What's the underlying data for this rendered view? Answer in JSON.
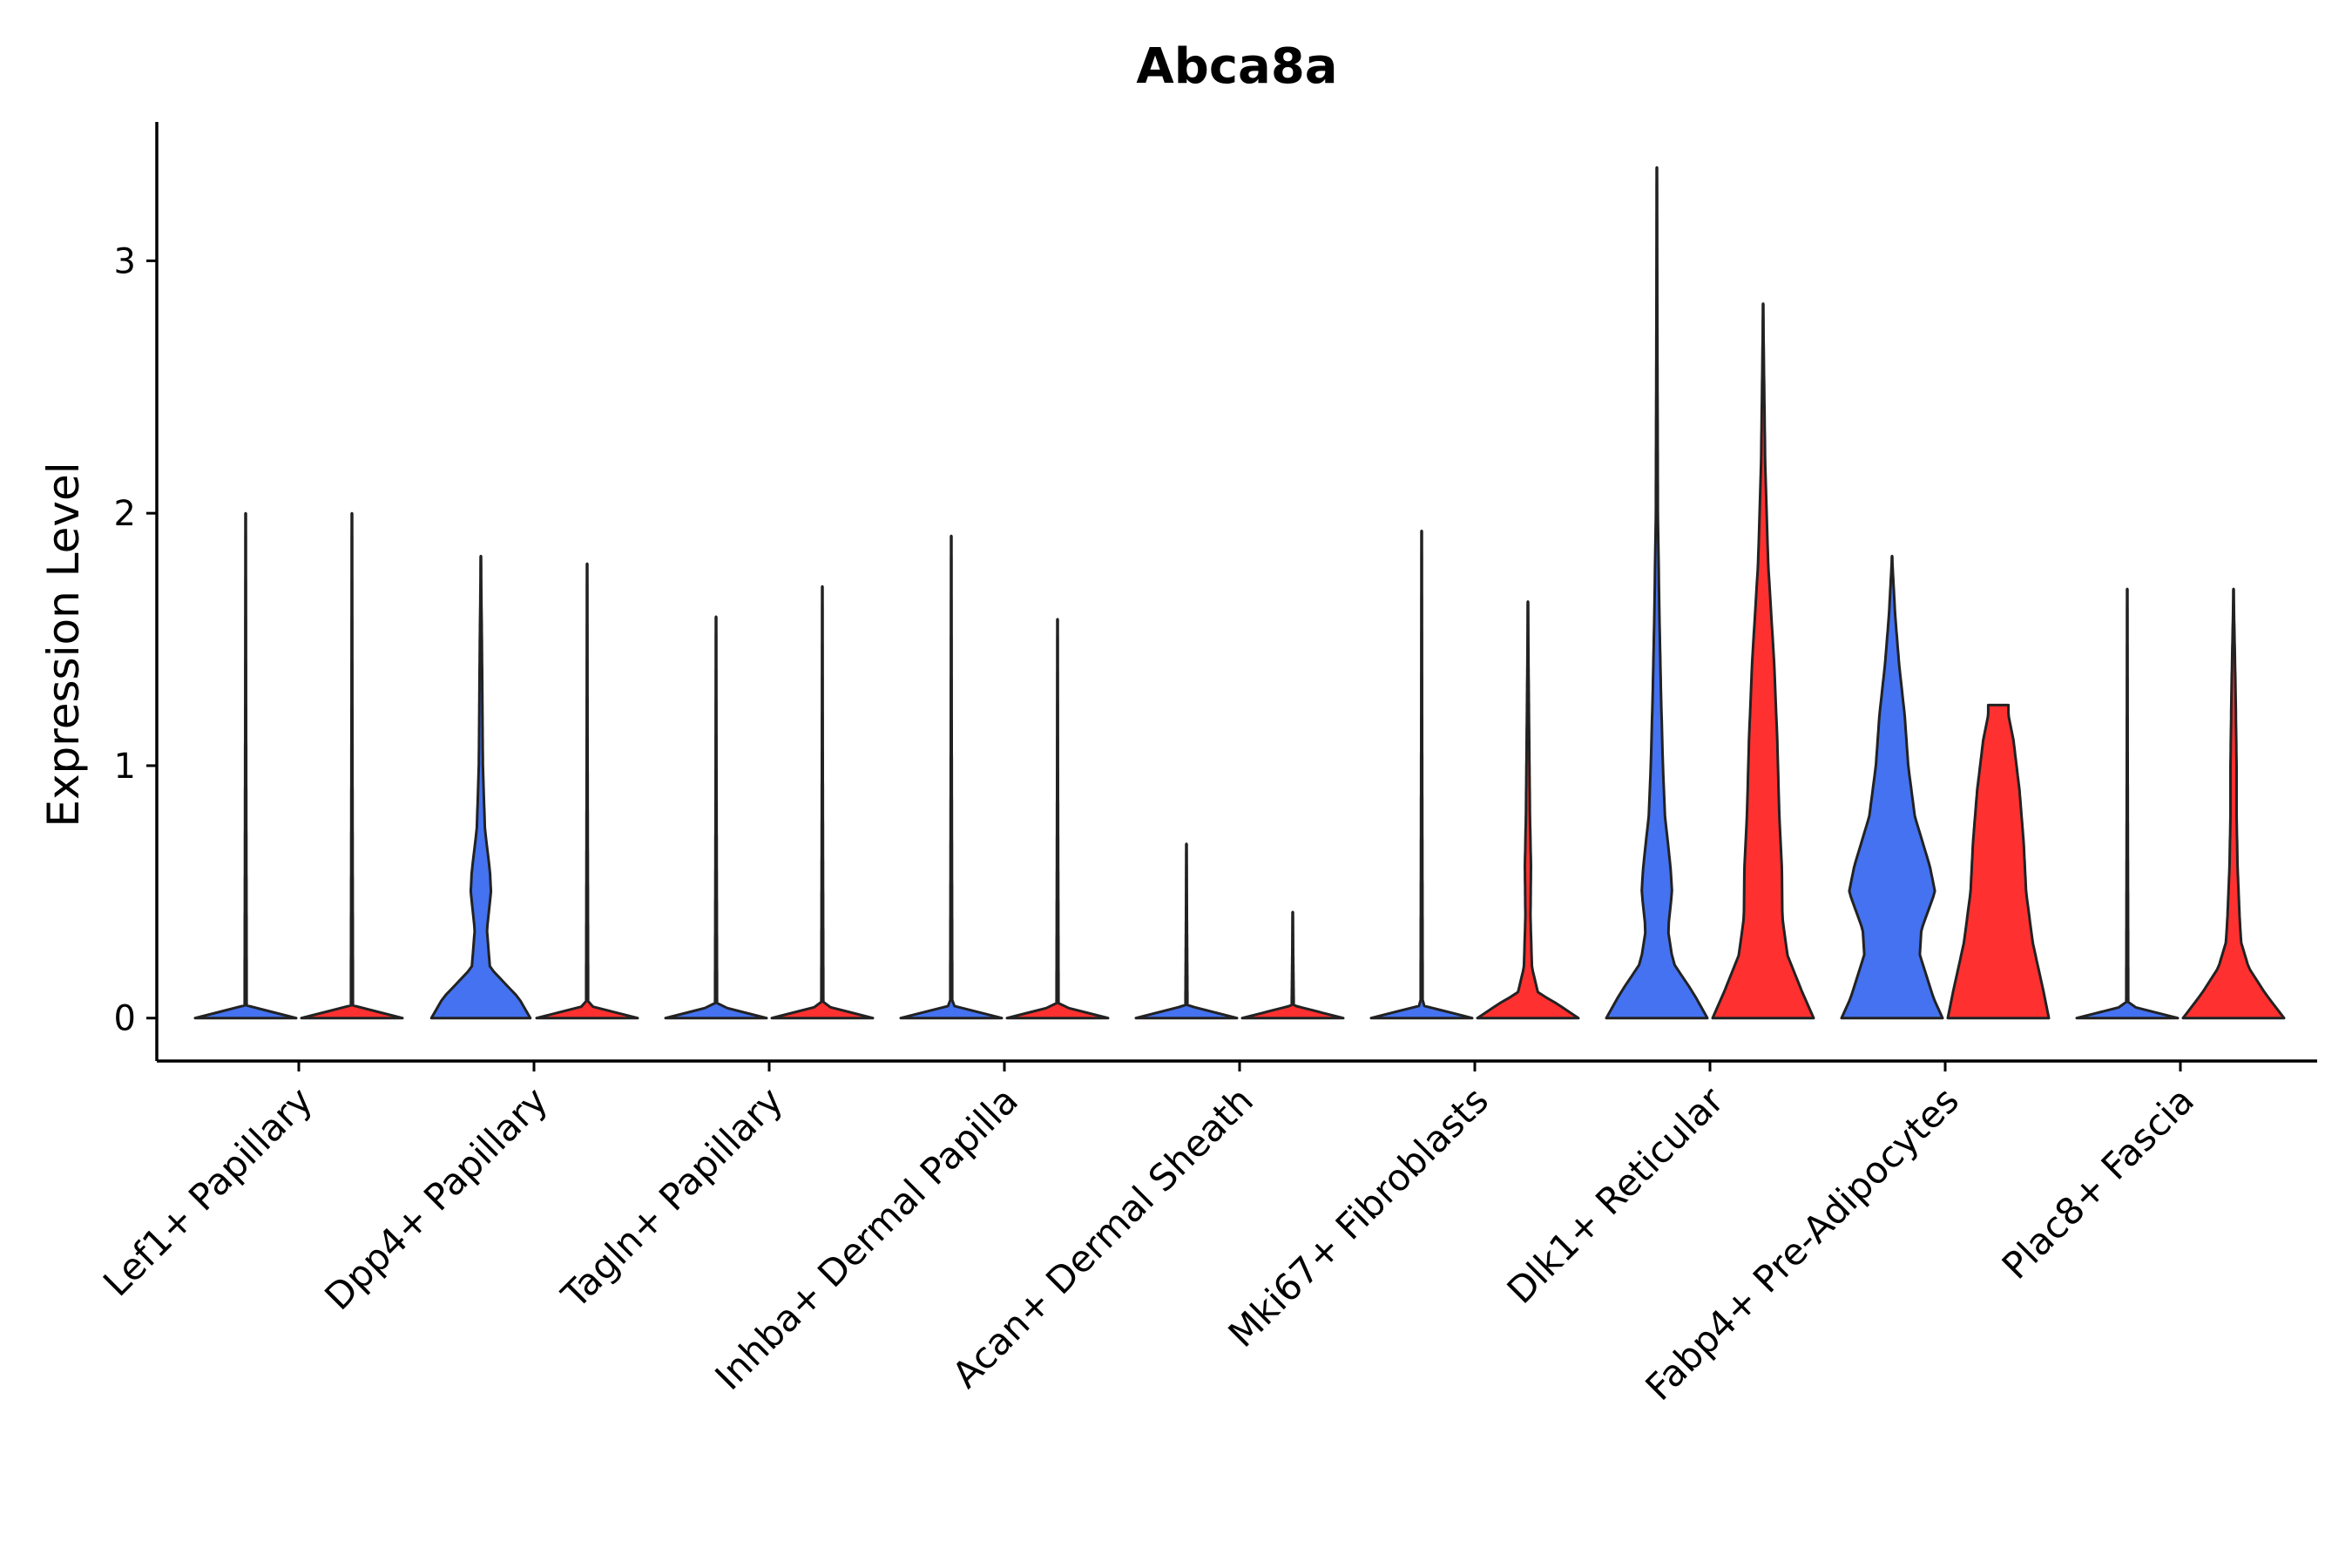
{
  "chart_data": {
    "type": "violin",
    "title": "Abca8a",
    "xlabel": "",
    "ylabel": "Expression Level",
    "ylim": [
      -0.17,
      3.55
    ],
    "yticks": [
      0,
      1,
      2,
      3
    ],
    "colors": {
      "group1": "#4472f0",
      "group2": "#ff3030",
      "outline": "#222222"
    },
    "categories": [
      "Lef1+ Papillary",
      "Dpp4+ Papillary",
      "Tagln+ Papillary",
      "Inhba+ Dermal Papilla",
      "Acan+ Dermal Sheath",
      "Mki67+ Fibroblasts",
      "Dlk1+ Reticular",
      "Fabp4+ Pre-Adipocytes",
      "Plac8+ Fascia"
    ],
    "series": [
      {
        "name": "group1",
        "color": "#4472f0",
        "max": [
          2.0,
          1.83,
          1.59,
          1.91,
          0.69,
          1.93,
          3.37,
          1.83,
          1.7
        ],
        "density": [
          [
            [
              0,
              1.0
            ],
            [
              0.05,
              0.02
            ],
            [
              2.0,
              0
            ]
          ],
          [
            [
              0,
              0.98
            ],
            [
              0.08,
              0.75
            ],
            [
              0.2,
              0.18
            ],
            [
              0.35,
              0.12
            ],
            [
              0.5,
              0.2
            ],
            [
              0.58,
              0.18
            ],
            [
              0.75,
              0.08
            ],
            [
              1.0,
              0.04
            ],
            [
              1.5,
              0.02
            ],
            [
              1.83,
              0
            ]
          ],
          [
            [
              0,
              1.0
            ],
            [
              0.05,
              0.02
            ],
            [
              1.59,
              0
            ]
          ],
          [
            [
              0,
              1.0
            ],
            [
              0.05,
              0.02
            ],
            [
              1.91,
              0
            ]
          ],
          [
            [
              0,
              1.0
            ],
            [
              0.05,
              0.02
            ],
            [
              0.69,
              0
            ]
          ],
          [
            [
              0,
              1.0
            ],
            [
              0.05,
              0.02
            ],
            [
              1.93,
              0
            ]
          ],
          [
            [
              0,
              1.0
            ],
            [
              0.1,
              0.72
            ],
            [
              0.22,
              0.32
            ],
            [
              0.35,
              0.22
            ],
            [
              0.5,
              0.3
            ],
            [
              0.6,
              0.27
            ],
            [
              0.8,
              0.16
            ],
            [
              1.0,
              0.12
            ],
            [
              1.3,
              0.08
            ],
            [
              1.6,
              0.05
            ],
            [
              2.0,
              0.02
            ],
            [
              3.37,
              0
            ]
          ],
          [
            [
              0,
              1.0
            ],
            [
              0.08,
              0.82
            ],
            [
              0.25,
              0.55
            ],
            [
              0.35,
              0.58
            ],
            [
              0.5,
              0.85
            ],
            [
              0.6,
              0.75
            ],
            [
              0.8,
              0.45
            ],
            [
              1.0,
              0.32
            ],
            [
              1.2,
              0.25
            ],
            [
              1.4,
              0.14
            ],
            [
              1.6,
              0.06
            ],
            [
              1.83,
              0
            ]
          ],
          [
            [
              0,
              1.0
            ],
            [
              0.05,
              0.02
            ],
            [
              1.7,
              0
            ]
          ]
        ]
      },
      {
        "name": "group2",
        "color": "#ff3030",
        "max": [
          2.0,
          1.8,
          1.71,
          1.58,
          0.42,
          1.65,
          2.83,
          1.24,
          1.7
        ],
        "density": [
          [
            [
              0,
              1.0
            ],
            [
              0.05,
              0.02
            ],
            [
              2.0,
              0
            ]
          ],
          [
            [
              0,
              1.0
            ],
            [
              0.05,
              0.02
            ],
            [
              1.8,
              0
            ]
          ],
          [
            [
              0,
              1.0
            ],
            [
              0.05,
              0.02
            ],
            [
              1.71,
              0
            ]
          ],
          [
            [
              0,
              1.0
            ],
            [
              0.05,
              0.02
            ],
            [
              1.58,
              0
            ]
          ],
          [
            [
              0,
              1.0
            ],
            [
              0.05,
              0.02
            ],
            [
              0.42,
              0
            ]
          ],
          [
            [
              0,
              1.0
            ],
            [
              0.06,
              0.55
            ],
            [
              0.1,
              0.2
            ],
            [
              0.2,
              0.08
            ],
            [
              0.4,
              0.05
            ],
            [
              0.6,
              0.06
            ],
            [
              0.8,
              0.04
            ],
            [
              1.2,
              0.02
            ],
            [
              1.65,
              0
            ]
          ],
          [
            [
              0,
              1.0
            ],
            [
              0.1,
              0.78
            ],
            [
              0.25,
              0.48
            ],
            [
              0.4,
              0.38
            ],
            [
              0.6,
              0.37
            ],
            [
              0.8,
              0.32
            ],
            [
              1.1,
              0.28
            ],
            [
              1.4,
              0.22
            ],
            [
              1.8,
              0.1
            ],
            [
              2.2,
              0.04
            ],
            [
              2.83,
              0
            ]
          ],
          [
            [
              0,
              1.0
            ],
            [
              0.1,
              0.9
            ],
            [
              0.3,
              0.68
            ],
            [
              0.5,
              0.55
            ],
            [
              0.7,
              0.5
            ],
            [
              0.9,
              0.42
            ],
            [
              1.1,
              0.3
            ],
            [
              1.2,
              0.2
            ],
            [
              1.24,
              0.2
            ]
          ],
          [
            [
              0,
              1.0
            ],
            [
              0.1,
              0.62
            ],
            [
              0.2,
              0.3
            ],
            [
              0.3,
              0.15
            ],
            [
              0.4,
              0.12
            ],
            [
              0.6,
              0.08
            ],
            [
              0.8,
              0.06
            ],
            [
              1.0,
              0.06
            ],
            [
              1.3,
              0.04
            ],
            [
              1.7,
              0
            ]
          ]
        ]
      }
    ]
  }
}
